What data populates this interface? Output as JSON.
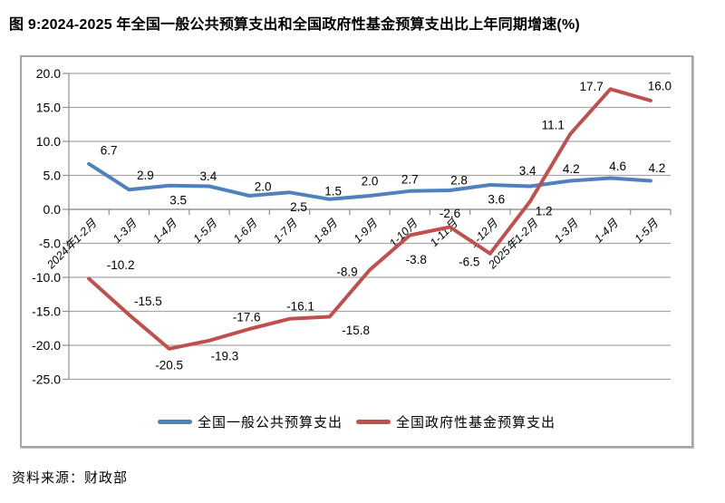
{
  "title": "图 9:2024-2025 年全国一般公共预算支出和全国政府性基金预算支出比上年同期增速(%)",
  "source": "资料来源：财政部",
  "colors": {
    "general_budget_line": "#4F81BD",
    "govt_fund_line": "#C0504D",
    "gridline": "#A6A6A6",
    "axis": "#8F8F8F",
    "frame_border": "#A6A6A6",
    "text": "#000000"
  },
  "chart_data": {
    "type": "line",
    "title": "图 9:2024-2025 年全国一般公共预算支出和全国政府性基金预算支出比上年同期增速(%)",
    "xlabel": "",
    "ylabel": "",
    "ylim": [
      -25,
      20
    ],
    "ytick_step": 5,
    "ytick_labels": [
      "20.0",
      "15.0",
      "10.0",
      "5.0",
      "0.0",
      "-5.0",
      "-10.0",
      "-15.0",
      "-20.0",
      "-25.0"
    ],
    "grid": true,
    "legend_position": "bottom",
    "categories": [
      "2024年1-2月",
      "1-3月",
      "1-4月",
      "1-5月",
      "1-6月",
      "1-7月",
      "1-8月",
      "1-9月",
      "1-10月",
      "1-11月",
      "1-12月",
      "2025年1-2月",
      "1-3月",
      "1-4月",
      "1-5月"
    ],
    "series": [
      {
        "name": "全国一般公共预算支出",
        "color": "#4F81BD",
        "values": [
          6.7,
          2.9,
          3.5,
          3.4,
          2.0,
          2.5,
          1.5,
          2.0,
          2.7,
          2.8,
          3.6,
          3.4,
          4.2,
          4.6,
          4.2
        ],
        "label_dx": [
          22,
          18,
          10,
          -1,
          15,
          10,
          4,
          0,
          0,
          10,
          7,
          -3,
          1,
          8,
          7
        ],
        "label_dy": [
          -15,
          -16,
          16,
          -11,
          -10,
          16,
          -9,
          -16,
          -13,
          -11,
          16,
          -17,
          -13,
          -13,
          -14
        ]
      },
      {
        "name": "全国政府性基金预算支出",
        "color": "#C0504D",
        "values": [
          -10.2,
          -15.5,
          -20.5,
          -19.3,
          -17.6,
          -16.1,
          -15.8,
          -8.9,
          -3.8,
          -2.6,
          -6.5,
          1.2,
          11.1,
          17.7,
          16.0
        ],
        "label_dx": [
          35,
          21,
          0,
          17,
          -3,
          12,
          29,
          -25,
          7,
          0,
          -23,
          15,
          -19,
          -21,
          10
        ],
        "label_dy": [
          -15,
          -15,
          18,
          17,
          -13,
          -14,
          15,
          2,
          27,
          -15,
          9,
          11,
          -10,
          -3,
          -16
        ]
      }
    ]
  }
}
